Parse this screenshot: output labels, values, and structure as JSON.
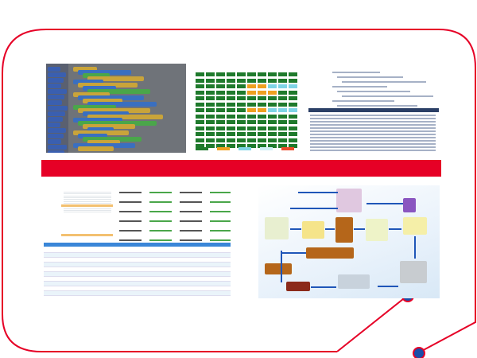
{
  "colors": {
    "frame": "#e60026",
    "banner": "#e60026",
    "node": "#1a4fa8",
    "grid_ok": "#1f7a2c",
    "grid_warn": "#f0a020",
    "grid_info": "#7fd4e6",
    "flow_arrow": "#1f56b8",
    "flow_box": "#b5661a"
  },
  "images": [
    {
      "name": "block-programming-screenshot"
    },
    {
      "name": "status-grid-screenshot"
    },
    {
      "name": "source-code-screenshot"
    },
    {
      "name": "spreadsheet-screenshot"
    },
    {
      "name": "logistics-flow-diagram"
    }
  ]
}
